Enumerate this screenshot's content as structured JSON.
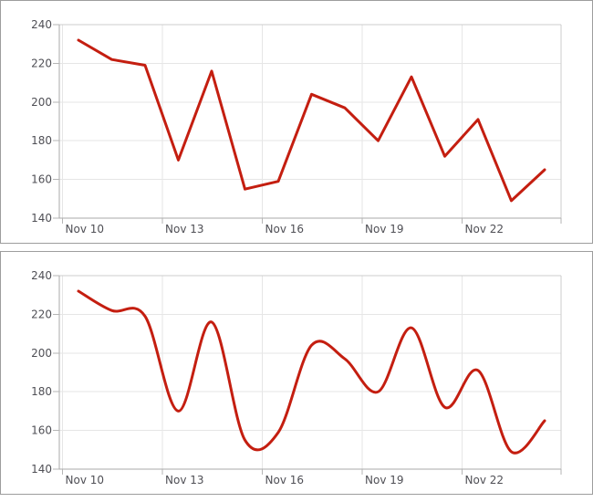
{
  "page": {
    "background": "#ffffff",
    "panel_border_color": "#9d9d9d"
  },
  "style": {
    "line_color": "#c41e10",
    "line_width": 3,
    "grid_color": "#e6e6e6",
    "axis_color": "#a8a8a8",
    "tick_color": "#b5b5b5",
    "frame_color": "#cccccc",
    "label_color": "#4f4f55"
  },
  "chart_data": [
    {
      "id": "top-chart",
      "type": "line",
      "interpolation": "linear",
      "title": "",
      "xlabel": "",
      "ylabel": "",
      "ylim": [
        140,
        240
      ],
      "yticks": [
        140,
        160,
        180,
        200,
        220,
        240
      ],
      "grid": true,
      "legend": null,
      "x_tick_labels": [
        {
          "text": "Nov 10",
          "point_index": 0
        },
        {
          "text": "Nov 13",
          "point_index": 3
        },
        {
          "text": "Nov 16",
          "point_index": 6
        },
        {
          "text": "Nov 19",
          "point_index": 9
        },
        {
          "text": "Nov 22",
          "point_index": 12
        }
      ],
      "series": [
        {
          "name": "series-1",
          "color": "#c41e10",
          "values": [
            232,
            222,
            219,
            170,
            216,
            155,
            159,
            204,
            197,
            180,
            213,
            172,
            191,
            149,
            165
          ]
        }
      ]
    },
    {
      "id": "bottom-chart",
      "type": "line",
      "interpolation": "smooth",
      "title": "",
      "xlabel": "",
      "ylabel": "",
      "ylim": [
        140,
        240
      ],
      "yticks": [
        140,
        160,
        180,
        200,
        220,
        240
      ],
      "grid": true,
      "legend": null,
      "x_tick_labels": [
        {
          "text": "Nov 10",
          "point_index": 0
        },
        {
          "text": "Nov 13",
          "point_index": 3
        },
        {
          "text": "Nov 16",
          "point_index": 6
        },
        {
          "text": "Nov 19",
          "point_index": 9
        },
        {
          "text": "Nov 22",
          "point_index": 12
        }
      ],
      "series": [
        {
          "name": "series-1",
          "color": "#c41e10",
          "values": [
            232,
            222,
            219,
            170,
            216,
            155,
            159,
            204,
            197,
            180,
            213,
            172,
            191,
            149,
            165
          ]
        }
      ]
    }
  ]
}
